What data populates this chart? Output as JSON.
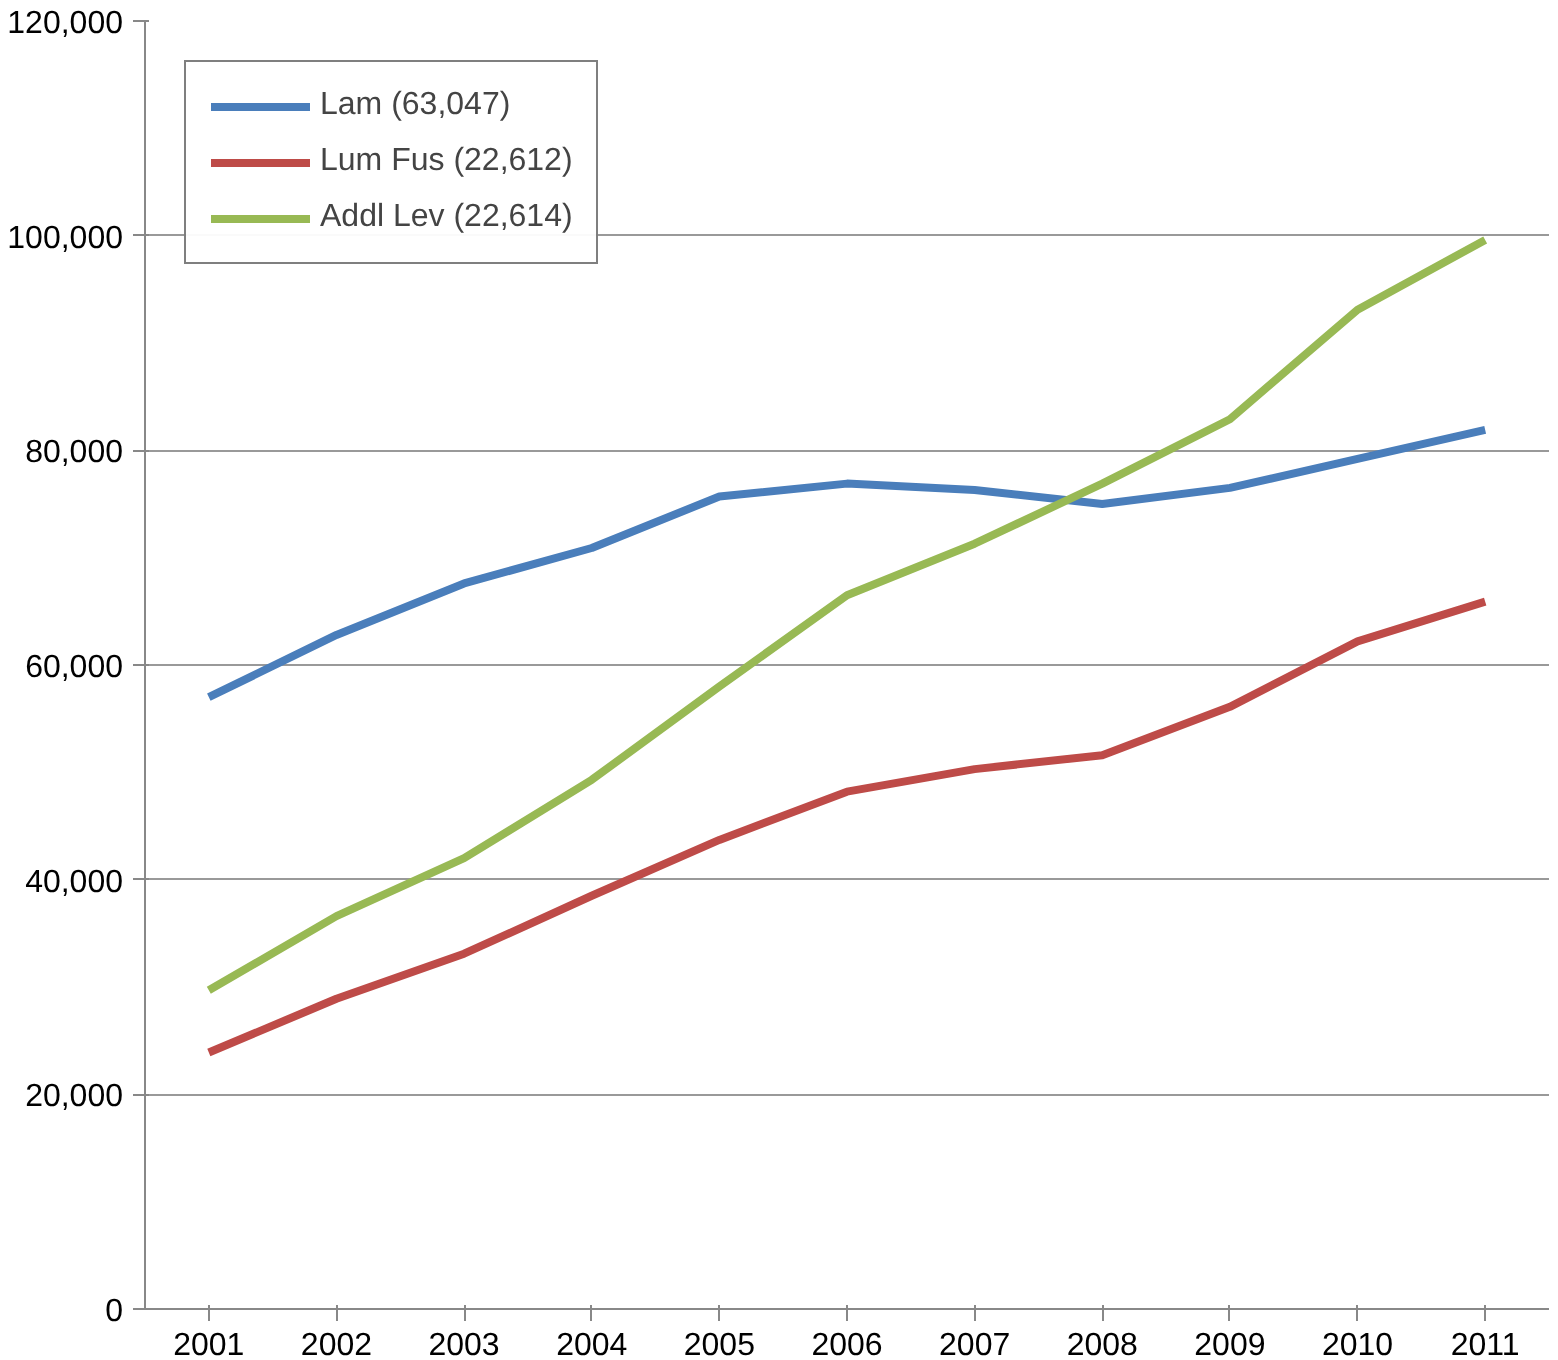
{
  "chart_data": {
    "type": "line",
    "categories": [
      "2001",
      "2002",
      "2003",
      "2004",
      "2005",
      "2006",
      "2007",
      "2008",
      "2009",
      "2010",
      "2011"
    ],
    "series": [
      {
        "name": "Lam (63,047)",
        "color": "#4a7ebb",
        "values": [
          57000,
          62800,
          67600,
          70900,
          75700,
          76900,
          76300,
          75000,
          76500,
          79200,
          81900
        ]
      },
      {
        "name": "Lum Fus (22,612)",
        "color": "#be4b48",
        "values": [
          23900,
          28900,
          33100,
          38500,
          43700,
          48200,
          50300,
          51600,
          56100,
          62200,
          65900
        ]
      },
      {
        "name": "Addl Lev (22,614)",
        "color": "#98b954",
        "values": [
          29700,
          36600,
          42000,
          49300,
          58000,
          66500,
          71300,
          76900,
          82900,
          93100,
          99600
        ]
      }
    ],
    "ylim": [
      0,
      120000
    ],
    "yticks": [
      {
        "value": 0,
        "label": "0"
      },
      {
        "value": 20000,
        "label": "20,000"
      },
      {
        "value": 40000,
        "label": "40,000"
      },
      {
        "value": 60000,
        "label": "60,000"
      },
      {
        "value": 80000,
        "label": "80,000"
      },
      {
        "value": 100000,
        "label": "100,000"
      },
      {
        "value": 120000,
        "label": "120,000"
      }
    ],
    "grid": "y",
    "legend": "top left",
    "marker": "none",
    "line_style": "solid"
  }
}
